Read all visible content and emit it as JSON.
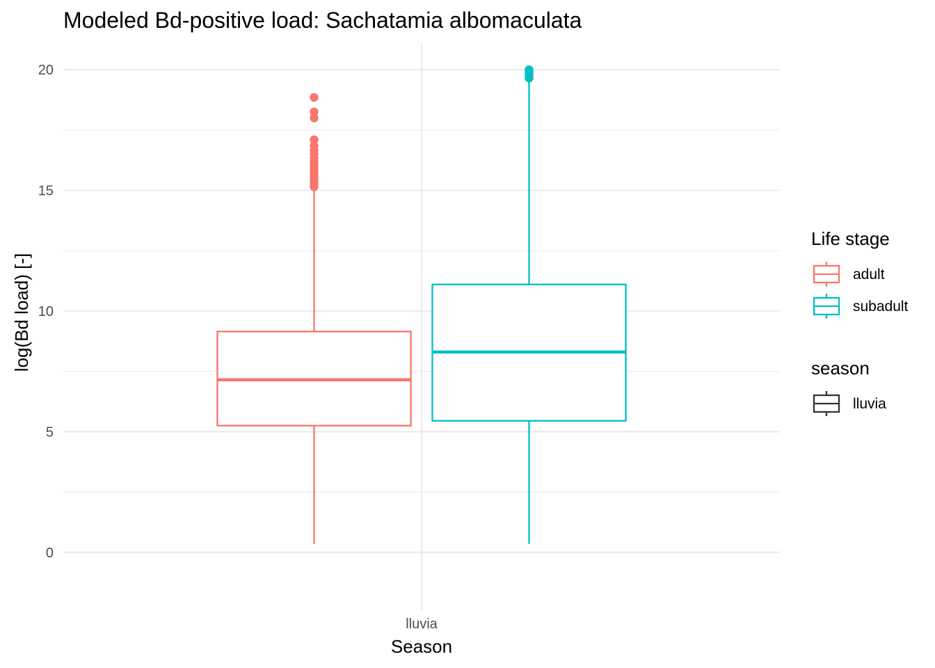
{
  "chart_data": {
    "type": "boxplot",
    "title": "Modeled Bd-positive load: Sachatamia albomaculata",
    "xlabel": "Season",
    "ylabel": "log(Bd load) [-]",
    "categories": [
      "lluvia"
    ],
    "ylim": [
      -2.4,
      21.1
    ],
    "yticks": [
      0,
      5,
      10,
      15,
      20
    ],
    "grid": true,
    "legend_position": "right",
    "legends": [
      {
        "title": "Life stage",
        "entries": [
          {
            "label": "adult",
            "color": "#F8766D"
          },
          {
            "label": "subadult",
            "color": "#00BFC4"
          }
        ]
      },
      {
        "title": "season",
        "entries": [
          {
            "label": "lluvia",
            "color": "#333333"
          }
        ]
      }
    ],
    "series": [
      {
        "name": "adult",
        "category": "lluvia",
        "color": "#F8766D",
        "whisker_low": 0.35,
        "q1": 5.25,
        "median": 7.15,
        "q3": 9.15,
        "whisker_high": 15.1,
        "outliers": [
          15.15,
          15.25,
          15.35,
          15.45,
          15.6,
          15.75,
          15.9,
          16.05,
          16.2,
          16.35,
          16.5,
          16.65,
          16.85,
          17.1,
          18.0,
          18.25,
          18.85
        ]
      },
      {
        "name": "subadult",
        "category": "lluvia",
        "color": "#00BFC4",
        "whisker_low": 0.35,
        "q1": 5.45,
        "median": 8.3,
        "q3": 11.1,
        "whisker_high": 19.6,
        "outliers": [
          19.65,
          19.75,
          19.85,
          19.95,
          20.0
        ]
      }
    ]
  }
}
